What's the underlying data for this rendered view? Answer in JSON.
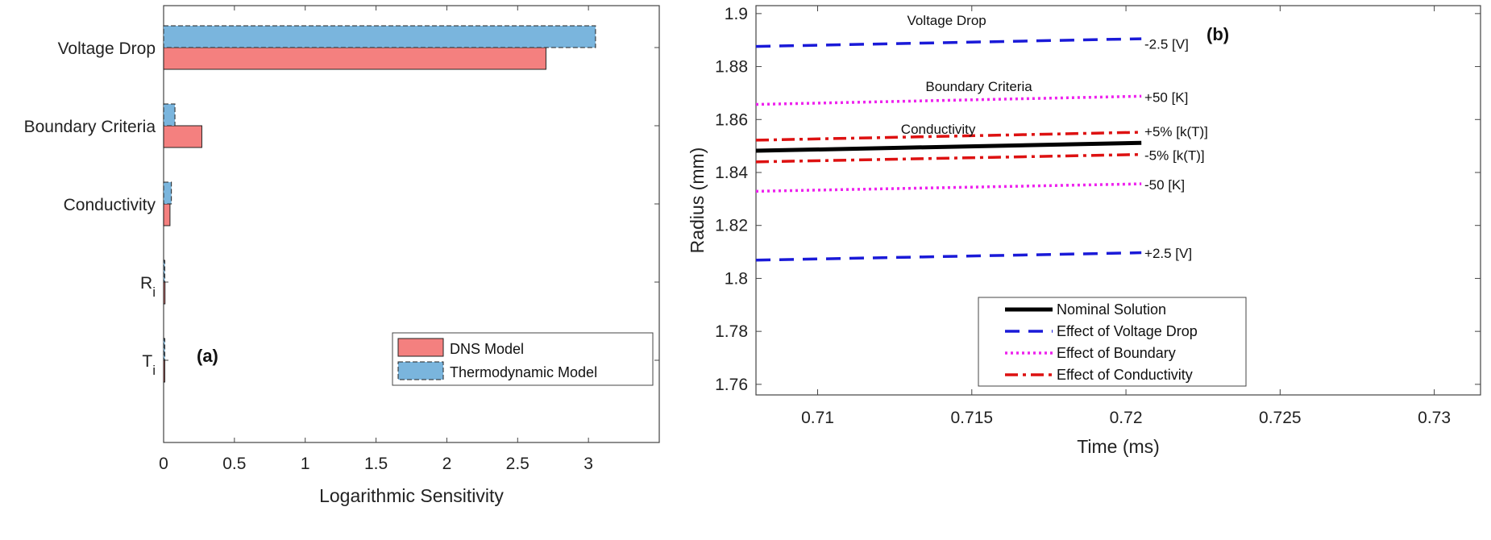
{
  "chart_data": [
    {
      "type": "bar",
      "orientation": "horizontal",
      "panel_label": "(a)",
      "categories": [
        "Voltage Drop",
        "Boundary Criteria",
        "Conductivity",
        "R",
        "T"
      ],
      "category_subscripts": [
        "",
        "",
        "",
        "i",
        "i"
      ],
      "xlabel": "Logarithmic Sensitivity",
      "ylabel": "",
      "xlim": [
        0,
        3.5
      ],
      "xticks": [
        "0",
        "0.5",
        "1",
        "1.5",
        "2",
        "2.5",
        "3"
      ],
      "legend_position": "bottom-right",
      "series": [
        {
          "name": "DNS Model",
          "color": "#f4807f",
          "values": [
            2.7,
            0.27,
            0.045,
            0.01,
            0.008
          ]
        },
        {
          "name": "Thermodynamic Model",
          "color": "#7ab5dd",
          "values": [
            3.05,
            0.08,
            0.055,
            0.003,
            0.002
          ]
        }
      ]
    },
    {
      "type": "line",
      "panel_label": "(b)",
      "xlabel": "Time (ms)",
      "ylabel": "Radius (mm)",
      "xlim": [
        0.708,
        0.7315
      ],
      "ylim": [
        1.756,
        1.903
      ],
      "xticks": [
        "0.71",
        "0.715",
        "0.72",
        "0.725",
        "0.73"
      ],
      "yticks": [
        "1.76",
        "1.78",
        "1.8",
        "1.82",
        "1.84",
        "1.86",
        "1.88",
        "1.9"
      ],
      "legend_position": "bottom-right",
      "legend": [
        {
          "name": "Nominal Solution",
          "color": "#000000",
          "style": "solid"
        },
        {
          "name": "Effect of Voltage Drop",
          "color": "#1a1ad8",
          "style": "dashed"
        },
        {
          "name": "Effect of Boundary",
          "color": "#ee22ee",
          "style": "dotted"
        },
        {
          "name": "Effect of Conductivity",
          "color": "#dd1111",
          "style": "dashdot"
        }
      ],
      "series": [
        {
          "name": "Nominal Solution",
          "group": 0,
          "x": [
            0.708,
            0.7205
          ],
          "y": [
            1.8482,
            1.8512
          ]
        },
        {
          "name": "-2.5 [V]",
          "group": 1,
          "x": [
            0.708,
            0.7205
          ],
          "y": [
            1.8876,
            1.8905
          ]
        },
        {
          "name": "+2.5 [V]",
          "group": 1,
          "x": [
            0.708,
            0.7205
          ],
          "y": [
            1.8069,
            1.8097
          ]
        },
        {
          "name": "+50 [K]",
          "group": 2,
          "x": [
            0.708,
            0.7205
          ],
          "y": [
            1.8657,
            1.8688
          ]
        },
        {
          "name": "-50 [K]",
          "group": 2,
          "x": [
            0.708,
            0.7205
          ],
          "y": [
            1.8329,
            1.8357
          ]
        },
        {
          "name": "+5% [k(T)]",
          "group": 3,
          "x": [
            0.708,
            0.7205
          ],
          "y": [
            1.8522,
            1.8552
          ]
        },
        {
          "name": "-5% [k(T)]",
          "group": 3,
          "x": [
            0.708,
            0.7205
          ],
          "y": [
            1.844,
            1.8468
          ]
        }
      ],
      "annotations": [
        {
          "text": "Voltage Drop",
          "x": 0.7129,
          "y": 1.8975
        },
        {
          "text": "Boundary Criteria",
          "x": 0.7135,
          "y": 1.8725
        },
        {
          "text": "Conductivity",
          "x": 0.7127,
          "y": 1.8565
        },
        {
          "text": "-2.5 [V]",
          "x": 0.7206,
          "y": 1.8885
        },
        {
          "text": "+50 [K]",
          "x": 0.7206,
          "y": 1.8685
        },
        {
          "text": "+5% [k(T)]",
          "x": 0.7206,
          "y": 1.8555
        },
        {
          "text": "-5% [k(T)]",
          "x": 0.7206,
          "y": 1.8465
        },
        {
          "text": "-50 [K]",
          "x": 0.7206,
          "y": 1.8355
        },
        {
          "text": "+2.5 [V]",
          "x": 0.7206,
          "y": 1.8095
        }
      ]
    }
  ]
}
